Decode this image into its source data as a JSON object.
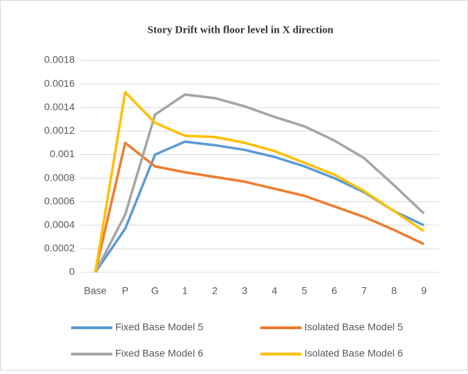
{
  "chart_data": {
    "type": "line",
    "title": "Story Drift with floor level in X direction",
    "categories": [
      "Base",
      "P",
      "G",
      "1",
      "2",
      "3",
      "4",
      "5",
      "6",
      "7",
      "8",
      "9"
    ],
    "series": [
      {
        "name": "Fixed Base Model 5",
        "color": "#5b9bd5",
        "values": [
          0,
          0.00037,
          0.001,
          0.00111,
          0.00108,
          0.00104,
          0.00098,
          0.0009,
          0.0008,
          0.00068,
          0.00052,
          0.0004
        ]
      },
      {
        "name": "Isolated Base Model 5",
        "color": "#ed7d31",
        "values": [
          0,
          0.0011,
          0.0009,
          0.00085,
          0.00081,
          0.00077,
          0.00071,
          0.00065,
          0.00056,
          0.00047,
          0.00036,
          0.00024
        ]
      },
      {
        "name": "Fixed Base Model 6",
        "color": "#a5a5a5",
        "values": [
          0,
          0.00049,
          0.00134,
          0.00151,
          0.00148,
          0.00141,
          0.00132,
          0.00124,
          0.00112,
          0.00097,
          0.00074,
          0.0005
        ]
      },
      {
        "name": "Isolated Base Model 6",
        "color": "#ffc000",
        "values": [
          0,
          0.00153,
          0.00127,
          0.00116,
          0.00115,
          0.0011,
          0.00103,
          0.00093,
          0.00083,
          0.00069,
          0.00052,
          0.00035
        ]
      }
    ],
    "ylim": [
      0,
      0.0018
    ],
    "yticks": [
      0,
      0.0002,
      0.0004,
      0.0006,
      0.0008,
      0.001,
      0.0012,
      0.0014,
      0.0016,
      0.0018
    ],
    "grid": true
  }
}
